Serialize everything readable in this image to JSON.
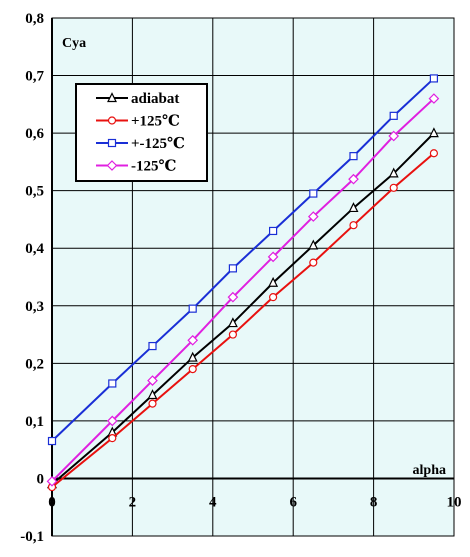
{
  "chart_data": {
    "type": "line",
    "title": "",
    "xlabel": "alpha",
    "ylabel": "Cya",
    "xlim": [
      0,
      10
    ],
    "ylim": [
      -0.1,
      0.8
    ],
    "x_ticks": [
      "0",
      "2",
      "4",
      "6",
      "8",
      "10"
    ],
    "y_ticks": [
      "-0,1",
      "0",
      "0,1",
      "0,2",
      "0,3",
      "0,4",
      "0,5",
      "0,6",
      "0,7",
      "0,8"
    ],
    "grid": true,
    "legend_position": "top-left",
    "plot_background": "#e8f9f9",
    "series": [
      {
        "name": "adiabat",
        "color": "#000000",
        "marker": "triangle",
        "x": [
          0,
          1.5,
          2.5,
          3.5,
          4.5,
          5.5,
          6.5,
          7.5,
          8.5,
          9.5
        ],
        "y": [
          -0.01,
          0.08,
          0.145,
          0.21,
          0.27,
          0.34,
          0.405,
          0.47,
          0.53,
          0.6
        ]
      },
      {
        "name": "+125℃",
        "color": "#e8110f",
        "marker": "circle",
        "x": [
          0,
          1.5,
          2.5,
          3.5,
          4.5,
          5.5,
          6.5,
          7.5,
          8.5,
          9.5
        ],
        "y": [
          -0.015,
          0.07,
          0.13,
          0.19,
          0.25,
          0.315,
          0.375,
          0.44,
          0.505,
          0.565
        ]
      },
      {
        "name": "+-125℃",
        "color": "#1a2fd6",
        "marker": "square",
        "x": [
          0,
          1.5,
          2.5,
          3.5,
          4.5,
          5.5,
          6.5,
          7.5,
          8.5,
          9.5
        ],
        "y": [
          0.065,
          0.165,
          0.23,
          0.295,
          0.365,
          0.43,
          0.495,
          0.56,
          0.63,
          0.695
        ]
      },
      {
        "name": "-125℃",
        "color": "#e020e0",
        "marker": "diamond",
        "x": [
          0,
          1.5,
          2.5,
          3.5,
          4.5,
          5.5,
          6.5,
          7.5,
          8.5,
          9.5
        ],
        "y": [
          -0.005,
          0.1,
          0.17,
          0.24,
          0.315,
          0.385,
          0.455,
          0.52,
          0.595,
          0.66
        ]
      }
    ]
  }
}
